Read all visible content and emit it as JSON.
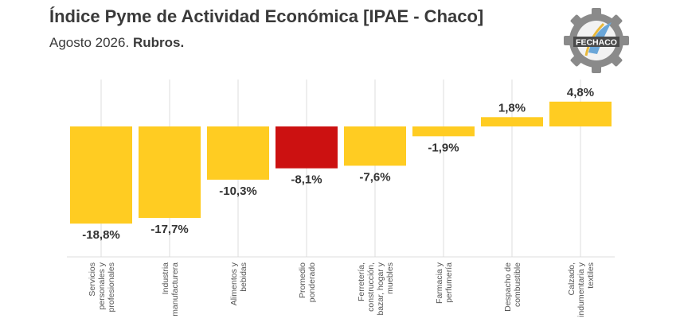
{
  "header": {
    "title": "Índice Pyme de Actividad Económica [IPAE - Chaco]",
    "subtitle_prefix": "Agosto 2026.",
    "subtitle_bold": "Rubros."
  },
  "logo": {
    "text": "FECHACO",
    "icon": "fechaco-gear-logo"
  },
  "colors": {
    "bar": "#FFCC22",
    "highlight": "#CC1111",
    "grid": "#dcdcdc"
  },
  "chart_data": {
    "type": "bar",
    "categories": [
      [
        "Servicios",
        "personales y",
        "profesionales"
      ],
      [
        "Industria",
        "manufacturera"
      ],
      [
        "Alimentos y",
        "bebidas"
      ],
      [
        "Promedio",
        "ponderado"
      ],
      [
        "Ferretería,",
        "construcción,",
        "bazar, hogar y",
        "muebles"
      ],
      [
        "Farmacia y",
        "perfumería"
      ],
      [
        "Despacho de",
        "combustible"
      ],
      [
        "Calzado,",
        "indumentaria y",
        "textiles"
      ]
    ],
    "values": [
      -18.8,
      -17.7,
      -10.3,
      -8.1,
      -7.6,
      -1.9,
      1.8,
      4.8
    ],
    "value_labels": [
      "-18,8%",
      "-17,7%",
      "-10,3%",
      "-8,1%",
      "-7,6%",
      "-1,9%",
      "1,8%",
      "4,8%"
    ],
    "highlight_index": 3,
    "grid": "vertical",
    "legend": "none"
  }
}
